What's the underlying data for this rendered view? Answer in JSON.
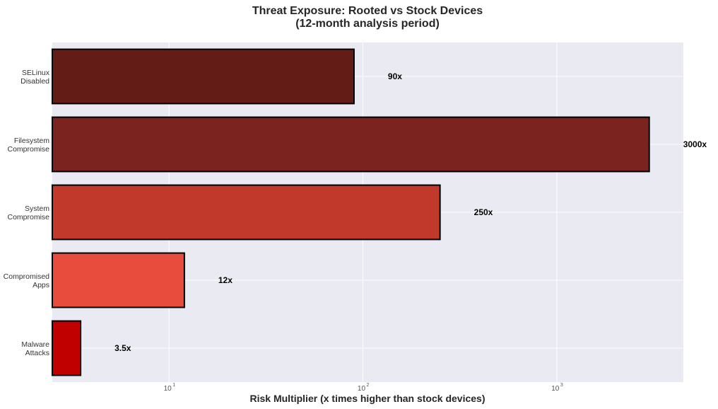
{
  "chart_data": {
    "type": "bar",
    "orientation": "horizontal",
    "title": "Threat Exposure: Rooted vs Stock Devices",
    "subtitle": "(12-month analysis period)",
    "xlabel": "Risk Multiplier (x times higher than stock devices)",
    "ylabel": "",
    "x_scale": "log",
    "xlim": [
      2.5,
      4500
    ],
    "x_ticks": [
      {
        "base": "10",
        "exp": "1",
        "value": 10
      },
      {
        "base": "10",
        "exp": "2",
        "value": 100
      },
      {
        "base": "10",
        "exp": "3",
        "value": 1000
      }
    ],
    "grid": true,
    "categories": [
      [
        "SELinux",
        "Disabled"
      ],
      [
        "Filesystem",
        "Compromise"
      ],
      [
        "System",
        "Compromise"
      ],
      [
        "Compromised",
        "Apps"
      ],
      [
        "Malware",
        "Attacks"
      ]
    ],
    "values": [
      90,
      3000,
      250,
      12,
      3.5
    ],
    "data_labels": [
      "90x",
      "3000x",
      "250x",
      "12x",
      "3.5x"
    ],
    "colors": [
      "#641c17",
      "#7b231e",
      "#c0392b",
      "#e74c3c",
      "#c00000"
    ]
  }
}
